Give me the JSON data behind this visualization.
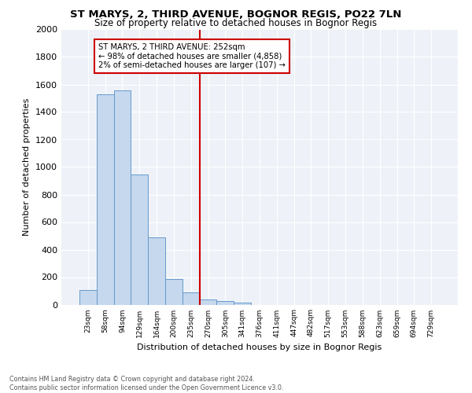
{
  "title": "ST MARYS, 2, THIRD AVENUE, BOGNOR REGIS, PO22 7LN",
  "subtitle": "Size of property relative to detached houses in Bognor Regis",
  "xlabel": "Distribution of detached houses by size in Bognor Regis",
  "ylabel": "Number of detached properties",
  "bin_labels": [
    "23sqm",
    "58sqm",
    "94sqm",
    "129sqm",
    "164sqm",
    "200sqm",
    "235sqm",
    "270sqm",
    "305sqm",
    "341sqm",
    "376sqm",
    "411sqm",
    "447sqm",
    "482sqm",
    "517sqm",
    "553sqm",
    "588sqm",
    "623sqm",
    "659sqm",
    "694sqm",
    "729sqm"
  ],
  "bar_values": [
    105,
    1530,
    1555,
    945,
    490,
    185,
    90,
    38,
    25,
    14,
    0,
    0,
    0,
    0,
    0,
    0,
    0,
    0,
    0,
    0,
    0
  ],
  "bar_color": "#c5d8ed",
  "bar_edge_color": "#6699cc",
  "property_line_x": 6.5,
  "property_line_label": "ST MARYS, 2 THIRD AVENUE: 252sqm",
  "annotation_line1": "← 98% of detached houses are smaller (4,858)",
  "annotation_line2": "2% of semi-detached houses are larger (107) →",
  "vline_color": "#cc0000",
  "ylim": [
    0,
    2000
  ],
  "yticks": [
    0,
    200,
    400,
    600,
    800,
    1000,
    1200,
    1400,
    1600,
    1800,
    2000
  ],
  "footer_line1": "Contains HM Land Registry data © Crown copyright and database right 2024.",
  "footer_line2": "Contains public sector information licensed under the Open Government Licence v3.0.",
  "bg_color": "#eef2f8"
}
